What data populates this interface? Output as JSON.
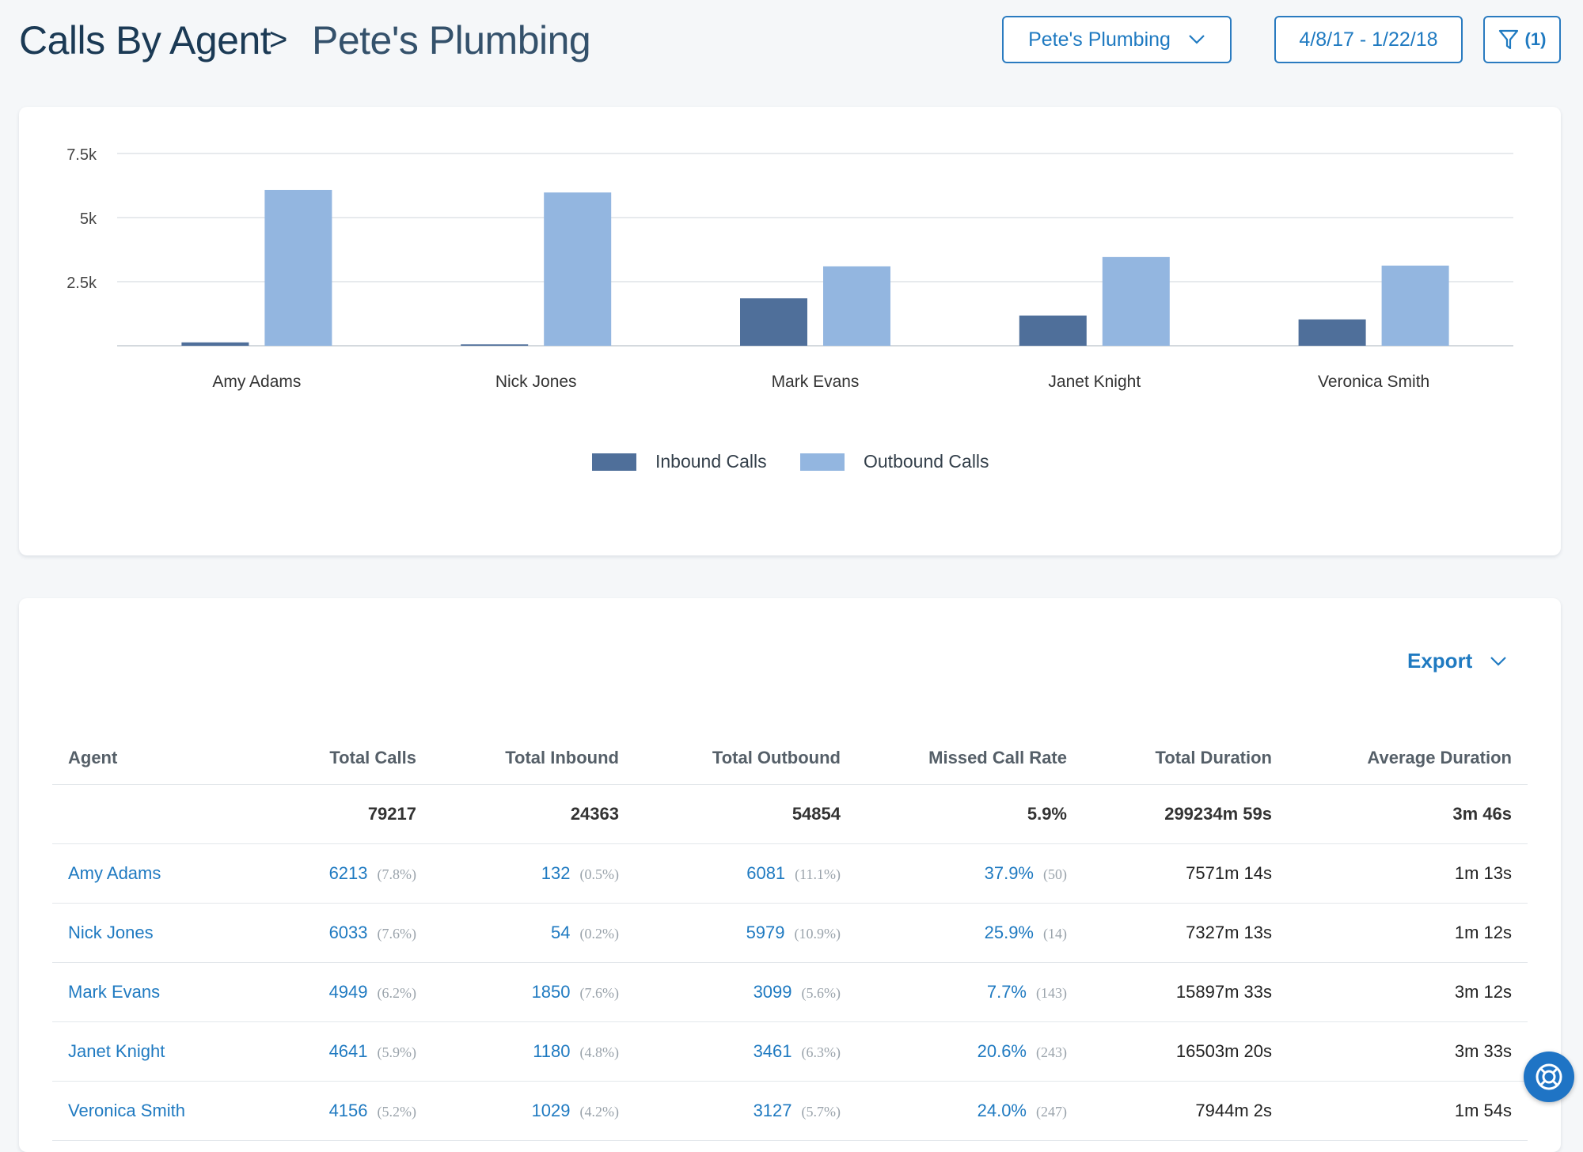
{
  "header": {
    "title": "Calls By Agent",
    "separator": ">",
    "subtitle": "Pete's Plumbing",
    "company_select": "Pete's Plumbing",
    "date_range": "4/8/17 - 1/22/18",
    "filter_count": "(1)"
  },
  "colors": {
    "accent": "#1f7ac1",
    "inbound": "#4f6f9a",
    "outbound": "#93b6e0"
  },
  "chart_data": {
    "type": "bar",
    "categories": [
      "Amy Adams",
      "Nick Jones",
      "Mark Evans",
      "Janet Knight",
      "Veronica Smith"
    ],
    "series": [
      {
        "name": "Inbound Calls",
        "values": [
          132,
          54,
          1850,
          1180,
          1029
        ]
      },
      {
        "name": "Outbound Calls",
        "values": [
          6081,
          5979,
          3099,
          3461,
          3127
        ]
      }
    ],
    "yticks": [
      "7.5k",
      "5k",
      "2.5k"
    ],
    "ytick_values": [
      7500,
      5000,
      2500
    ],
    "ylim": [
      0,
      7500
    ],
    "grid": true,
    "legend": "bottom"
  },
  "table": {
    "export_label": "Export",
    "columns": [
      "Agent",
      "Total Calls",
      "Total Inbound",
      "Total Outbound",
      "Missed Call Rate",
      "Total Duration",
      "Average Duration"
    ],
    "totals": [
      "",
      "79217",
      "24363",
      "54854",
      "5.9%",
      "299234m 59s",
      "3m 46s"
    ],
    "rows": [
      {
        "agent": "Amy Adams",
        "total": "6213",
        "total_pct": "(7.8%)",
        "inbound": "132",
        "inbound_pct": "(0.5%)",
        "outbound": "6081",
        "outbound_pct": "(11.1%)",
        "missed": "37.9%",
        "missed_count": "(50)",
        "duration": "7571m 14s",
        "avg": "1m 13s"
      },
      {
        "agent": "Nick Jones",
        "total": "6033",
        "total_pct": "(7.6%)",
        "inbound": "54",
        "inbound_pct": "(0.2%)",
        "outbound": "5979",
        "outbound_pct": "(10.9%)",
        "missed": "25.9%",
        "missed_count": "(14)",
        "duration": "7327m 13s",
        "avg": "1m 12s"
      },
      {
        "agent": "Mark Evans",
        "total": "4949",
        "total_pct": "(6.2%)",
        "inbound": "1850",
        "inbound_pct": "(7.6%)",
        "outbound": "3099",
        "outbound_pct": "(5.6%)",
        "missed": "7.7%",
        "missed_count": "(143)",
        "duration": "15897m 33s",
        "avg": "3m 12s"
      },
      {
        "agent": "Janet Knight",
        "total": "4641",
        "total_pct": "(5.9%)",
        "inbound": "1180",
        "inbound_pct": "(4.8%)",
        "outbound": "3461",
        "outbound_pct": "(6.3%)",
        "missed": "20.6%",
        "missed_count": "(243)",
        "duration": "16503m 20s",
        "avg": "3m 33s"
      },
      {
        "agent": "Veronica Smith",
        "total": "4156",
        "total_pct": "(5.2%)",
        "inbound": "1029",
        "inbound_pct": "(4.2%)",
        "outbound": "3127",
        "outbound_pct": "(5.7%)",
        "missed": "24.0%",
        "missed_count": "(247)",
        "duration": "7944m 2s",
        "avg": "1m 54s"
      }
    ]
  },
  "help": {
    "icon": "lifebuoy-icon"
  }
}
